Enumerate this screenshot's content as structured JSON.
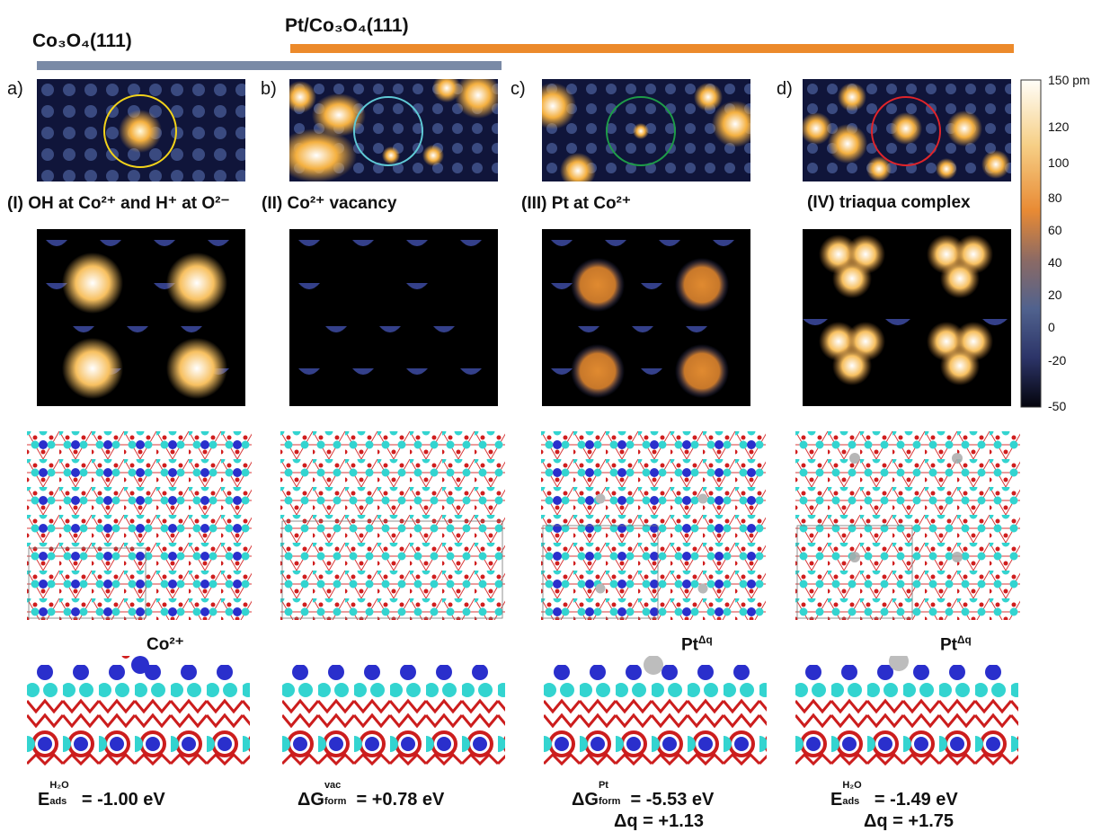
{
  "header": {
    "co3o4_label": "Co₃O₄(111)",
    "pt_co3o4_label": "Pt/Co₃O₄(111)",
    "co3o4_bar_color": "#7a8aa6",
    "pt_bar_color": "#ec8a2b"
  },
  "columns": [
    {
      "letter": "a)",
      "caption": "(I) OH at Co²⁺ and H⁺ at O²⁻",
      "circle_color": "#f2d21a"
    },
    {
      "letter": "b)",
      "caption": "(II) Co²⁺ vacancy",
      "circle_color": "#5fc9d6"
    },
    {
      "letter": "c)",
      "caption": "(III) Pt at Co²⁺",
      "circle_color": "#1e9c48"
    },
    {
      "letter": "d)",
      "caption": "(IV) triaqua complex",
      "circle_color": "#e0242a"
    }
  ],
  "colorbar": {
    "unit": "150 pm",
    "ticks": [
      "120",
      "100",
      "80",
      "60",
      "40",
      "20",
      "0",
      "-20",
      "-50"
    ]
  },
  "side_labels": {
    "a": "Co²⁺",
    "c": "Pt",
    "c_sup": "Δq",
    "d": "Pt",
    "d_sup": "Δq"
  },
  "energies": {
    "a": {
      "symbol": "E",
      "sup": "H₂O",
      "sub": "ads",
      "value": "= -1.00 eV"
    },
    "b": {
      "symbol": "ΔG",
      "sup": "vac",
      "sub": "form",
      "value": "= +0.78 eV"
    },
    "c": {
      "symbol": "ΔG",
      "sup": "Pt",
      "sub": "form",
      "value": "= -5.53 eV",
      "dq": "Δq = +1.13"
    },
    "d": {
      "symbol": "E",
      "sup": "H₂O",
      "sub": "ads",
      "value": "= -1.49 eV",
      "dq": "Δq = +1.75"
    }
  }
}
